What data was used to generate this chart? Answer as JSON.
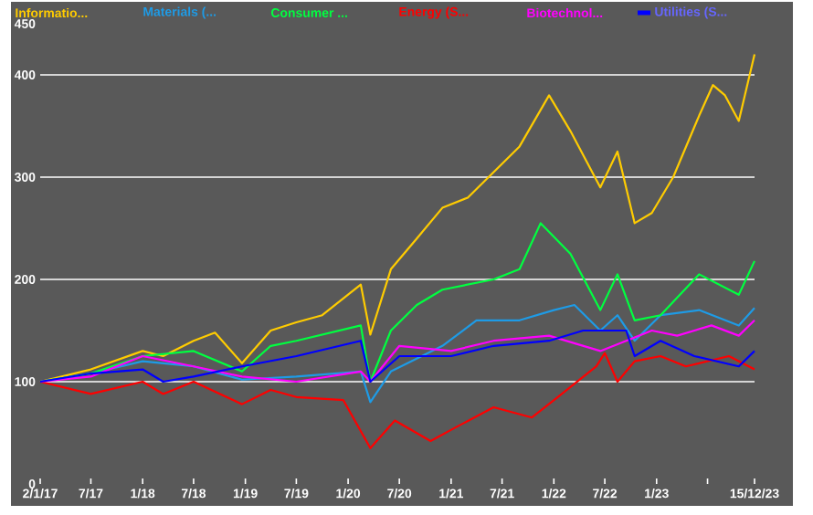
{
  "chart_data": {
    "type": "line",
    "xlim": [
      "2017-01-02",
      "2023-12-15"
    ],
    "xticks": [
      {
        "value": "2017-01-02",
        "label": "2/1/17"
      },
      {
        "value": "2017-07-01",
        "label": "7/17"
      },
      {
        "value": "2018-01-01",
        "label": "1/18"
      },
      {
        "value": "2018-07-01",
        "label": "7/18"
      },
      {
        "value": "2019-01-01",
        "label": "1/19"
      },
      {
        "value": "2019-07-01",
        "label": "7/19"
      },
      {
        "value": "2020-01-01",
        "label": "1/20"
      },
      {
        "value": "2020-07-01",
        "label": "7/20"
      },
      {
        "value": "2021-01-01",
        "label": "1/21"
      },
      {
        "value": "2021-07-01",
        "label": "7/21"
      },
      {
        "value": "2022-01-01",
        "label": "1/22"
      },
      {
        "value": "2022-07-01",
        "label": "7/22"
      },
      {
        "value": "2023-01-01",
        "label": "1/23"
      },
      {
        "value": "2023-07-01",
        "label": null
      },
      {
        "value": "2023-12-15",
        "label": "15/12/23"
      }
    ],
    "ylim": [
      0,
      450
    ],
    "yticks": [
      0,
      100,
      200,
      300,
      400,
      450
    ],
    "grid": "y",
    "legend": "top",
    "series": [
      {
        "name": "Informatio...",
        "color": "#ffcc00",
        "x": [
          "2017-01-02",
          "2017-07-01",
          "2018-01-01",
          "2018-03-15",
          "2018-07-01",
          "2018-09-15",
          "2018-12-20",
          "2019-04-01",
          "2019-07-01",
          "2019-10-01",
          "2020-02-15",
          "2020-03-20",
          "2020-06-01",
          "2020-09-01",
          "2020-12-01",
          "2021-03-01",
          "2021-06-01",
          "2021-09-01",
          "2021-12-15",
          "2022-03-01",
          "2022-06-15",
          "2022-08-15",
          "2022-10-15",
          "2022-12-15",
          "2023-03-01",
          "2023-06-01",
          "2023-07-20",
          "2023-09-01",
          "2023-10-20",
          "2023-12-15"
        ],
        "values": [
          100,
          112,
          130,
          125,
          140,
          148,
          118,
          150,
          158,
          165,
          195,
          146,
          210,
          240,
          270,
          280,
          305,
          330,
          380,
          345,
          290,
          325,
          255,
          265,
          300,
          360,
          390,
          380,
          355,
          420
        ]
      },
      {
        "name": "Materials (...",
        "color": "#1e9be6",
        "x": [
          "2017-01-02",
          "2017-07-01",
          "2018-01-01",
          "2018-07-01",
          "2018-12-20",
          "2019-07-01",
          "2020-02-15",
          "2020-03-20",
          "2020-06-01",
          "2020-12-01",
          "2021-04-01",
          "2021-09-01",
          "2022-01-01",
          "2022-03-15",
          "2022-06-15",
          "2022-08-15",
          "2022-10-15",
          "2023-01-15",
          "2023-06-01",
          "2023-10-20",
          "2023-12-15"
        ],
        "values": [
          100,
          108,
          120,
          115,
          102,
          105,
          110,
          80,
          110,
          135,
          160,
          160,
          170,
          175,
          150,
          165,
          140,
          165,
          170,
          155,
          172
        ]
      },
      {
        "name": "Consumer ...",
        "color": "#00ff40",
        "x": [
          "2017-01-02",
          "2017-07-01",
          "2018-01-01",
          "2018-07-01",
          "2018-12-20",
          "2019-04-01",
          "2019-07-01",
          "2020-02-15",
          "2020-03-20",
          "2020-06-01",
          "2020-09-01",
          "2020-12-01",
          "2021-06-01",
          "2021-09-01",
          "2021-11-15",
          "2022-03-01",
          "2022-06-15",
          "2022-08-15",
          "2022-10-15",
          "2023-01-15",
          "2023-06-01",
          "2023-10-20",
          "2023-12-15"
        ],
        "values": [
          100,
          108,
          125,
          130,
          110,
          135,
          140,
          155,
          100,
          150,
          175,
          190,
          200,
          210,
          255,
          225,
          170,
          205,
          160,
          165,
          205,
          185,
          218
        ]
      },
      {
        "name": "Energy (S...",
        "color": "#ff0000",
        "x": [
          "2017-01-02",
          "2017-07-01",
          "2018-01-01",
          "2018-03-15",
          "2018-07-01",
          "2018-12-20",
          "2019-04-01",
          "2019-07-01",
          "2019-12-15",
          "2020-03-20",
          "2020-06-15",
          "2020-10-20",
          "2021-01-15",
          "2021-06-01",
          "2021-10-15",
          "2022-01-15",
          "2022-06-01",
          "2022-07-01",
          "2022-08-15",
          "2022-10-15",
          "2023-01-15",
          "2023-04-15",
          "2023-09-15",
          "2023-12-15"
        ],
        "values": [
          100,
          88,
          100,
          88,
          100,
          78,
          92,
          85,
          82,
          35,
          62,
          42,
          55,
          75,
          65,
          85,
          115,
          128,
          100,
          120,
          125,
          115,
          125,
          112
        ]
      },
      {
        "name": "Biotechnol...",
        "color": "#ff00ff",
        "x": [
          "2017-01-02",
          "2017-07-01",
          "2018-01-01",
          "2018-07-01",
          "2018-12-20",
          "2019-07-01",
          "2020-02-15",
          "2020-03-20",
          "2020-07-01",
          "2021-01-01",
          "2021-06-01",
          "2021-12-15",
          "2022-06-15",
          "2022-09-15",
          "2022-12-15",
          "2023-03-15",
          "2023-07-15",
          "2023-10-20",
          "2023-12-15"
        ],
        "values": [
          100,
          105,
          125,
          115,
          105,
          100,
          110,
          100,
          135,
          130,
          140,
          145,
          130,
          140,
          150,
          145,
          155,
          145,
          160
        ]
      },
      {
        "name": "Utilities (S...",
        "color": "#0000ff",
        "x": [
          "2017-01-02",
          "2017-07-01",
          "2018-01-01",
          "2018-03-15",
          "2018-07-01",
          "2018-12-20",
          "2019-07-01",
          "2020-02-15",
          "2020-03-20",
          "2020-07-01",
          "2021-01-01",
          "2021-06-01",
          "2021-12-15",
          "2022-04-15",
          "2022-09-15",
          "2022-10-15",
          "2023-01-15",
          "2023-05-15",
          "2023-10-20",
          "2023-12-15"
        ],
        "values": [
          100,
          108,
          112,
          100,
          105,
          115,
          125,
          140,
          100,
          125,
          125,
          135,
          140,
          150,
          150,
          125,
          140,
          125,
          115,
          130
        ]
      }
    ]
  }
}
